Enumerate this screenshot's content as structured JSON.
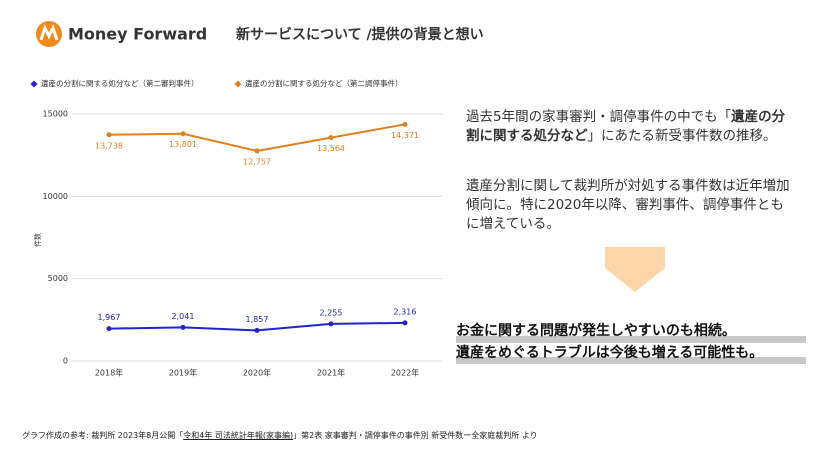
{
  "header": {
    "logo": "Money Forward",
    "title": "新サービスについて /提供の背景と想い"
  },
  "chart_data": {
    "type": "line",
    "y_label": "件数",
    "categories": [
      "2018年",
      "2019年",
      "2020年",
      "2021年",
      "2022年"
    ],
    "series": [
      {
        "name": "遺産の分割に関する処分など（第二審判事件）",
        "color": "#2323c8",
        "values": [
          1967,
          2041,
          1857,
          2255,
          2316
        ],
        "value_labels": [
          "1,967",
          "2,041",
          "1,857",
          "2,255",
          "2,316"
        ]
      },
      {
        "name": "遺産の分割に関する処分など（第二調停事件）",
        "color": "#e0801e",
        "values": [
          13738,
          13801,
          12757,
          13564,
          14371
        ],
        "value_labels": [
          "13,738",
          "13,801",
          "12,757",
          "13,564",
          "14,371"
        ]
      }
    ],
    "ylim": [
      0,
      15000
    ],
    "yticks": [
      0,
      5000,
      10000,
      15000
    ],
    "grid": true
  },
  "summary": {
    "paragraph1": [
      "過去5年間の家事審判・調停事件の中でも「",
      "遺産の分割に関する処分など",
      "」にあたる新受事件数の推移。"
    ],
    "paragraph2": "遺産分割に関して裁判所が対処する事件数は近年増加傾向に。特に2020年以降、審判事件、調停事件ともに増えている。"
  },
  "highlight": [
    "お金に関する問題が発生しやすいのも相続。",
    "遺産をめぐるトラブルは今後も増える可能性も。"
  ],
  "footer": [
    "グラフ作成の参考: 裁判所 2023年8月公開「",
    "令和4年 司法統計年報(家事編)",
    "」第2表 家事審判・調停事件の事件別 新受件数ー全家庭裁判所 より"
  ]
}
